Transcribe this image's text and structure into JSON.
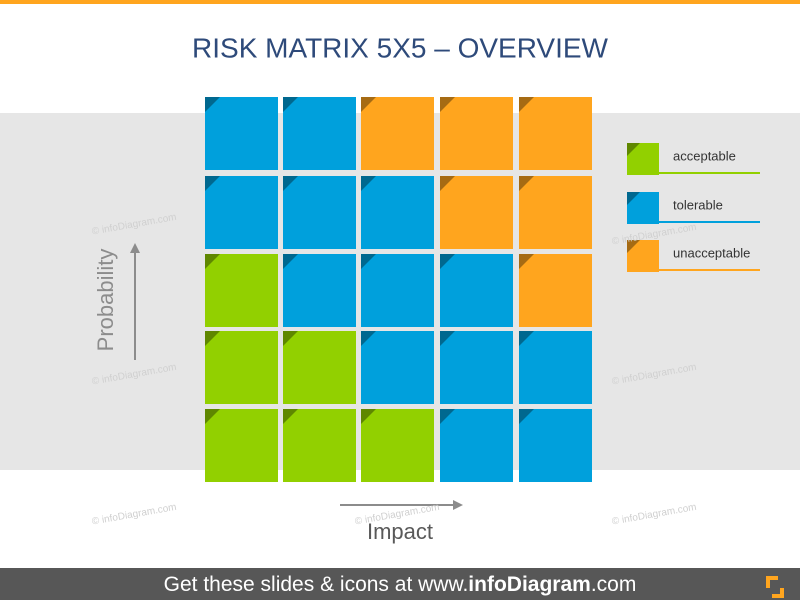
{
  "header": {
    "title": "RISK MATRIX 5X5 – OVERVIEW"
  },
  "axes": {
    "y_label": "Probability",
    "x_label": "Impact"
  },
  "legend": [
    {
      "label": "acceptable",
      "color": "#92d000"
    },
    {
      "label": "tolerable",
      "color": "#00a0dc"
    },
    {
      "label": "unacceptable",
      "color": "#ffa51e"
    }
  ],
  "watermark": "© infoDiagram.com",
  "footer": {
    "prefix": "Get these slides & icons at www.",
    "brand": "infoDiagram",
    "suffix": ".com"
  }
}
